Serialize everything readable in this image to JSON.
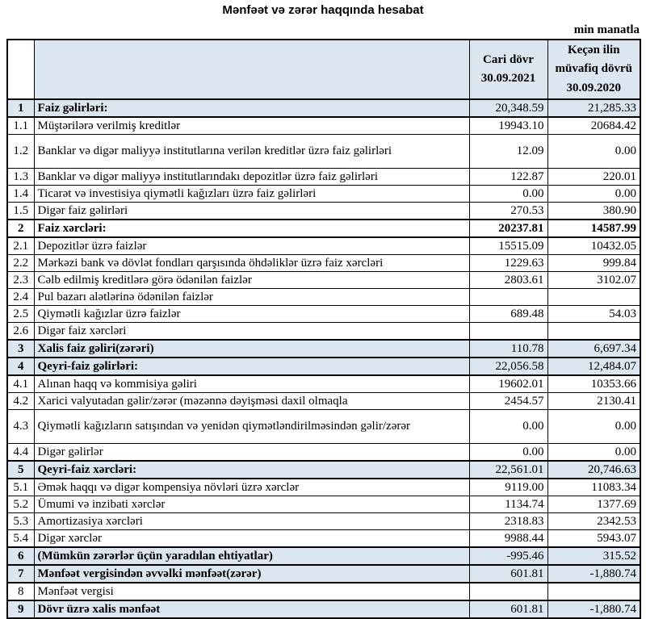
{
  "page": {
    "title": "Mənfəət və zərər haqqında hesabat",
    "unit_note": "min manatla"
  },
  "table": {
    "colors": {
      "highlight": "#dce6f1",
      "border": "#000000"
    },
    "header": {
      "num": "",
      "desc": "",
      "current_period": "Cari dövr\n30.09.2021",
      "previous_period": "Keçən ilin\nmüvafiq dövrü\n30.09.2020"
    },
    "rows": [
      {
        "num": "1",
        "label": "Faiz gəlirləri:",
        "current": "20,348.59",
        "previous": "21,285.33",
        "section": true,
        "highlight": true
      },
      {
        "num": "1.1",
        "label": "Müştərilərə verilmiş kreditlər",
        "current": "19943.10",
        "previous": "20684.42"
      },
      {
        "num": "1.2",
        "label": "Banklar və digər maliyyə institutlarına verilən kreditlər üzrə faiz gəlirləri",
        "current": "12.09",
        "previous": "0.00",
        "tall": true
      },
      {
        "num": "1.3",
        "label": "Banklar və digər maliyyə institutlarındakı depozitlər üzrə faiz gəlirləri",
        "current": "122.87",
        "previous": "220.01"
      },
      {
        "num": "1.4",
        "label": "Ticarət və investisiya qiymətli kağızları üzrə faiz gəlirləri",
        "current": "0.00",
        "previous": "0.00"
      },
      {
        "num": "1.5",
        "label": "Digər faiz gəlirləri",
        "current": "270.53",
        "previous": "380.90"
      },
      {
        "num": "2",
        "label": "Faiz xərcləri:",
        "current": "20237.81",
        "previous": "14587.99",
        "section": true,
        "bold_values": true
      },
      {
        "num": "2.1",
        "label": "Depozitlər üzrə faizlər",
        "current": "15515.09",
        "previous": "10432.05"
      },
      {
        "num": "2.2",
        "label": "Mərkəzi bank və dövlət fondları qarşısında öhdəliklər üzrə faiz xərcləri",
        "current": "1229.63",
        "previous": "999.84"
      },
      {
        "num": "2.3",
        "label": "Cəlb edilmiş kreditlərə görə ödənilən faizlər",
        "current": "2803.61",
        "previous": "3102.07"
      },
      {
        "num": "2.4",
        "label": "Pul bazarı alətlərinə ödənilən faizlər",
        "current": "",
        "previous": ""
      },
      {
        "num": "2.5",
        "label": "Qiymətli kağızlar üzrə faizlər",
        "current": "689.48",
        "previous": "54.03"
      },
      {
        "num": "2.6",
        "label": "Digər faiz xərcləri",
        "current": "",
        "previous": ""
      },
      {
        "num": "3",
        "label": "Xalis faiz gəliri(zərəri)",
        "current": "110.78",
        "previous": "6,697.34",
        "section": true,
        "highlight": true
      },
      {
        "num": "4",
        "label": "Qeyri-faiz gəlirləri:",
        "current": "22,056.58",
        "previous": "12,484.07",
        "section": true,
        "highlight": true
      },
      {
        "num": "4.1",
        "label": "Alınan haqq və kommisiya gəliri",
        "current": "19602.01",
        "previous": "10353.66"
      },
      {
        "num": "4.2",
        "label": "Xarici valyutadan gəlir/zərər (məzənnə dəyişməsi daxil olmaqla",
        "current": "2454.57",
        "previous": "2130.41"
      },
      {
        "num": "4.3",
        "label": "Qiymətli kağızların satışından və yenidən qiymətləndirilməsindən gəlir/zərər",
        "current": "0.00",
        "previous": "0.00",
        "tall": true
      },
      {
        "num": "4.4",
        "label": "Digər gəlirlər",
        "current": "0.00",
        "previous": "0.00"
      },
      {
        "num": "5",
        "label": "Qeyri-faiz xərcləri:",
        "current": "22,561.01",
        "previous": "20,746.63",
        "section": true,
        "highlight": true
      },
      {
        "num": "5.1",
        "label": "Əmək haqqı və digər kompensiya növləri üzrə xərclər",
        "current": "9119.00",
        "previous": "11083.34"
      },
      {
        "num": "5.2",
        "label": "Ümumi və inzibati xərclər",
        "current": "1134.74",
        "previous": "1377.69"
      },
      {
        "num": "5.3",
        "label": "Amortizasiya xərcləri",
        "current": "2318.83",
        "previous": "2342.53"
      },
      {
        "num": "5.4",
        "label": "Digər xərclər",
        "current": "9988.44",
        "previous": "5943.07"
      },
      {
        "num": "6",
        "label": "(Mümkün zərərlər üçün yaradılan ehtiyatlar)",
        "current": "-995.46",
        "previous": "315.52",
        "section": true,
        "highlight": true
      },
      {
        "num": "7",
        "label": "Mənfəət vergisindən əvvəlki mənfəət(zərər)",
        "current": "601.81",
        "previous": "-1,880.74",
        "section": true,
        "highlight": true
      },
      {
        "num": "8",
        "label": "Mənfəət vergisi",
        "current": "",
        "previous": ""
      },
      {
        "num": "9",
        "label": "Dövr üzrə xalis mənfəət",
        "current": "601.81",
        "previous": "-1,880.74",
        "section": true,
        "highlight": true
      }
    ]
  }
}
